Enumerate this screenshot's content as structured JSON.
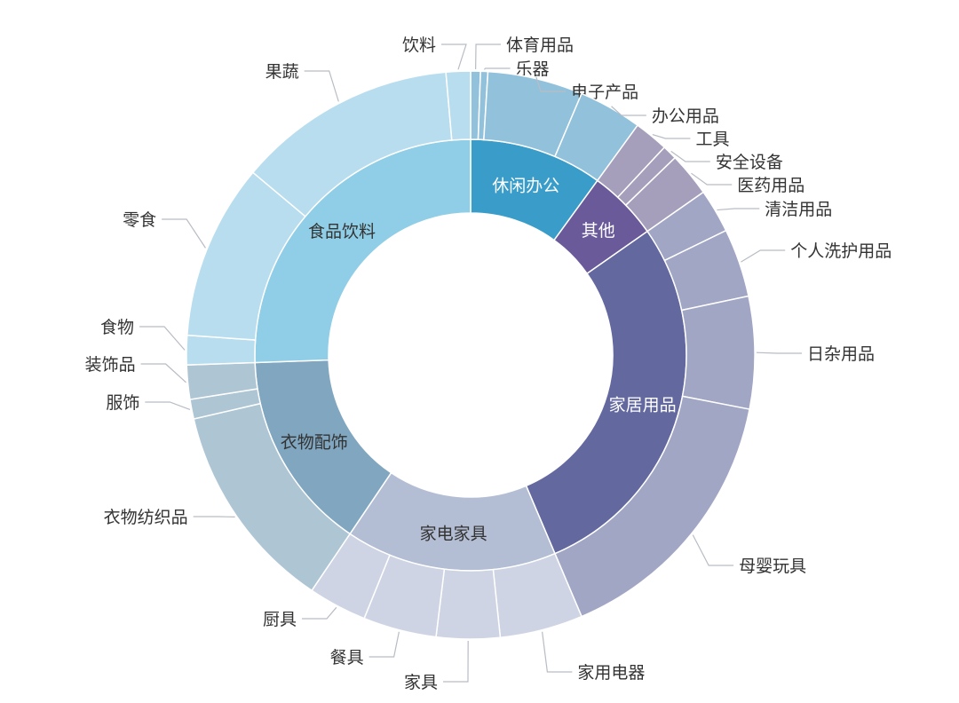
{
  "chart_data": {
    "type": "sunburst",
    "title": "",
    "series": [
      {
        "name": "休闲办公",
        "color": "#3a9dc9",
        "outer_color": "#92c1db",
        "children": [
          {
            "name": "体育用品",
            "value": 2
          },
          {
            "name": "乐器",
            "value": 1.5
          },
          {
            "name": "电子产品",
            "value": 19.5
          },
          {
            "name": "办公用品",
            "value": 13
          }
        ]
      },
      {
        "name": "其他",
        "color": "#6a5a99",
        "outer_color": "#a59fbb",
        "children": [
          {
            "name": "工具",
            "value": 7
          },
          {
            "name": "安全设备",
            "value": 3
          },
          {
            "name": "医药用品",
            "value": 9
          }
        ]
      },
      {
        "name": "家居用品",
        "color": "#63689f",
        "outer_color": "#a2a6c5",
        "children": [
          {
            "name": "清洁用品",
            "value": 9
          },
          {
            "name": "个人洗护用品",
            "value": 14
          },
          {
            "name": "日杂用品",
            "value": 23
          },
          {
            "name": "母婴玩具",
            "value": 56
          }
        ]
      },
      {
        "name": "家电家具",
        "color": "#b3bdd3",
        "outer_color": "#ced4e3",
        "children": [
          {
            "name": "家用电器",
            "value": 17
          },
          {
            "name": "家具",
            "value": 13
          },
          {
            "name": "餐具",
            "value": 15
          },
          {
            "name": "厨具",
            "value": 12
          }
        ]
      },
      {
        "name": "衣物配饰",
        "color": "#80a6c0",
        "outer_color": "#aec5d4",
        "children": [
          {
            "name": "衣物纺织品",
            "value": 43
          },
          {
            "name": "服饰",
            "value": 4
          },
          {
            "name": "装饰品",
            "value": 7
          }
        ]
      },
      {
        "name": "食品饮料",
        "color": "#8fcee6",
        "outer_color": "#b7ddee",
        "children": [
          {
            "name": "食物",
            "value": 6
          },
          {
            "name": "零食",
            "value": 36
          },
          {
            "name": "果蔬",
            "value": 45
          },
          {
            "name": "饮料",
            "value": 5
          }
        ]
      }
    ]
  }
}
